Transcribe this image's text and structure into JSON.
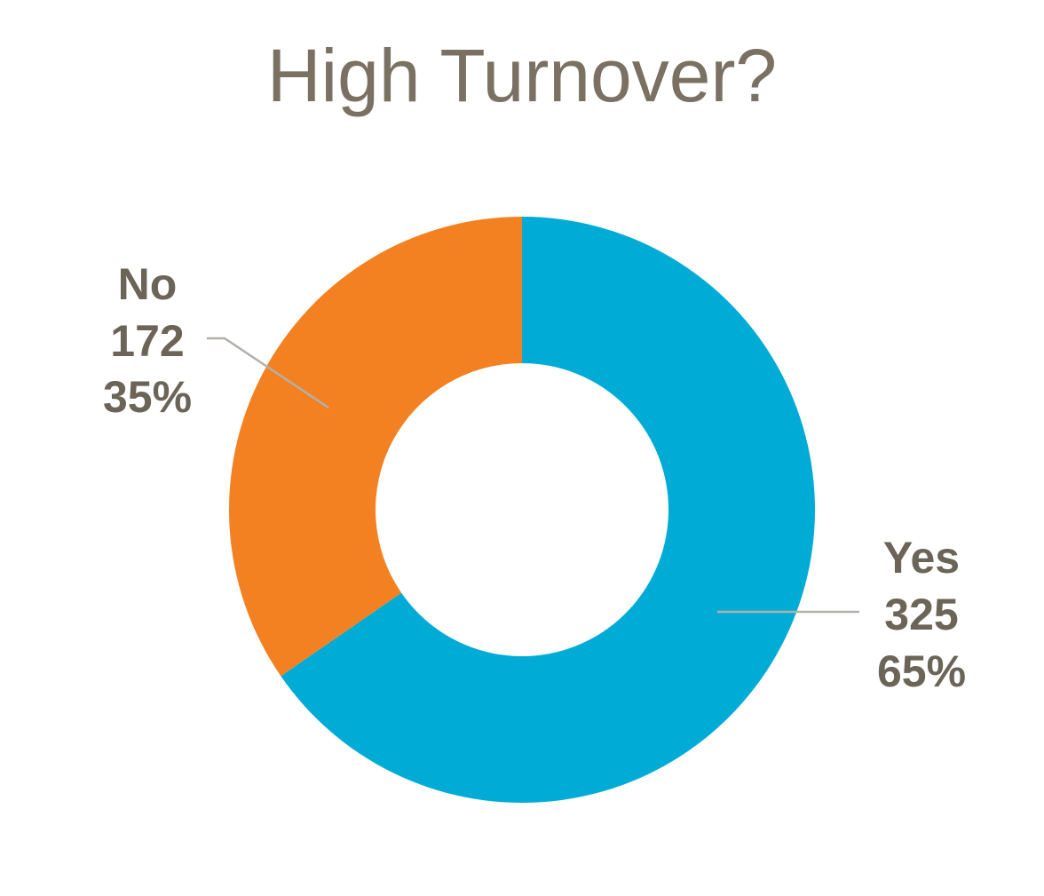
{
  "chart_data": {
    "type": "pie",
    "variant": "donut",
    "title": "High Turnover?",
    "start_angle_deg": 0,
    "direction": "clockwise",
    "slices": [
      {
        "label": "Yes",
        "value": 325,
        "percent_label": "65%",
        "color": "#00abd6"
      },
      {
        "label": "No",
        "value": 172,
        "percent_label": "35%",
        "color": "#f38121"
      }
    ],
    "legend": "none",
    "data_labels": "outside with leader lines"
  },
  "colors": {
    "title": "#7a7163",
    "label": "#6b6457",
    "leader_line": "#b3b0ab",
    "background": "#ffffff"
  }
}
